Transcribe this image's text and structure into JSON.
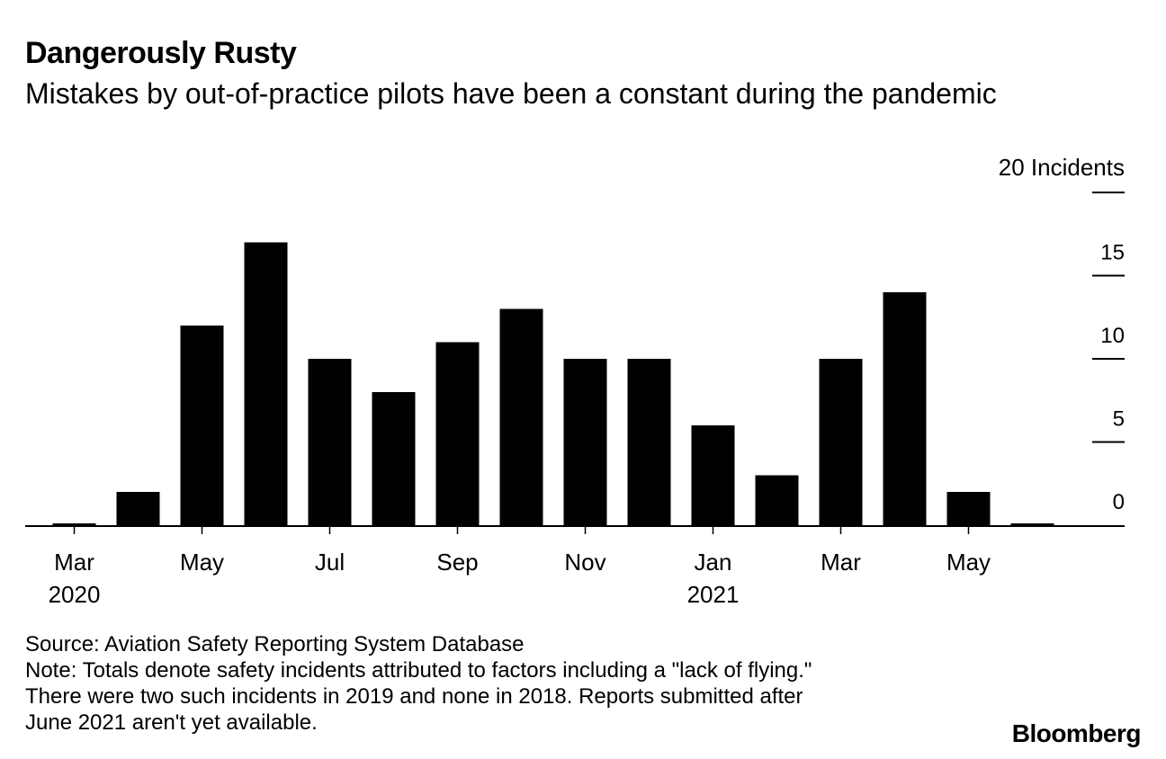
{
  "title": "Dangerously Rusty",
  "subtitle": "Mistakes by out-of-practice pilots have been a constant during the pandemic",
  "chart_data": {
    "type": "bar",
    "unit_label": "20 Incidents",
    "categories": [
      "Mar 2020",
      "Apr 2020",
      "May 2020",
      "Jun 2020",
      "Jul 2020",
      "Aug 2020",
      "Sep 2020",
      "Oct 2020",
      "Nov 2020",
      "Dec 2020",
      "Jan 2021",
      "Feb 2021",
      "Mar 2021",
      "Apr 2021",
      "May 2021",
      "Jun 2021"
    ],
    "values": [
      0,
      2,
      12,
      17,
      10,
      8,
      11,
      13,
      10,
      10,
      6,
      3,
      10,
      14,
      2,
      0
    ],
    "ylim": [
      0,
      20
    ],
    "yticks": [
      0,
      5,
      10,
      15,
      20
    ],
    "ytick_labels": [
      "0",
      "5",
      "10",
      "15"
    ],
    "x_tick_labels": [
      {
        "index": 0,
        "month": "Mar",
        "year": "2020"
      },
      {
        "index": 2,
        "month": "May",
        "year": ""
      },
      {
        "index": 4,
        "month": "Jul",
        "year": ""
      },
      {
        "index": 6,
        "month": "Sep",
        "year": ""
      },
      {
        "index": 8,
        "month": "Nov",
        "year": ""
      },
      {
        "index": 10,
        "month": "Jan",
        "year": "2021"
      },
      {
        "index": 12,
        "month": "Mar",
        "year": ""
      },
      {
        "index": 14,
        "month": "May",
        "year": ""
      }
    ],
    "bar_color": "#000000"
  },
  "notes": {
    "source": "Source: Aviation Safety Reporting System Database",
    "note_line1": "Note: Totals denote safety incidents attributed to factors including a \"lack of flying.\"",
    "note_line2": "There were two such incidents in 2019 and none in 2018. Reports submitted after",
    "note_line3": "June 2021 aren't yet available."
  },
  "brand": "Bloomberg"
}
